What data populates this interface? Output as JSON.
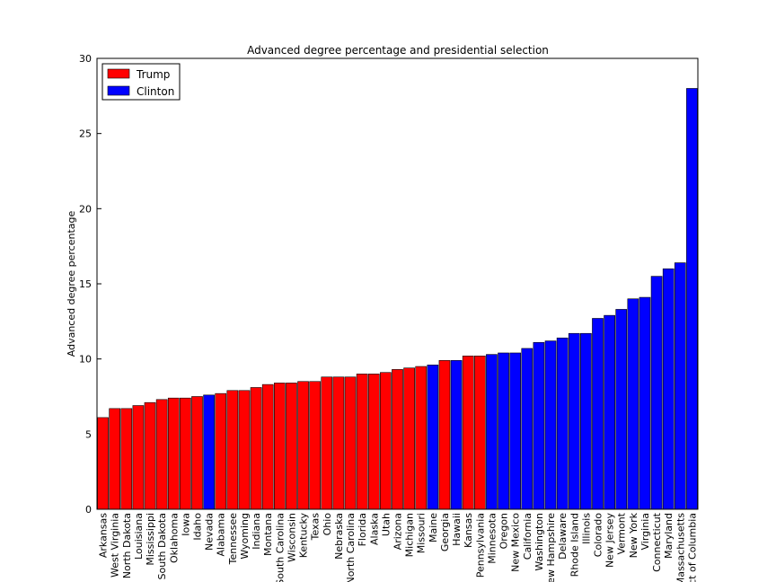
{
  "chart_data": {
    "type": "bar",
    "title": "Advanced degree percentage and presidential selection",
    "y_label": "Advanced degree percentage",
    "categories": [
      "Arkansas",
      "West Virginia",
      "North Dakota",
      "Louisiana",
      "Mississippi",
      "South Dakota",
      "Oklahoma",
      "Iowa",
      "Idaho",
      "Nevada",
      "Alabama",
      "Tennessee",
      "Wyoming",
      "Indiana",
      "Montana",
      "South Carolina",
      "Wisconsin",
      "Kentucky",
      "Texas",
      "Ohio",
      "Nebraska",
      "North Carolina",
      "Florida",
      "Alaska",
      "Utah",
      "Arizona",
      "Michigan",
      "Missouri",
      "Maine",
      "Georgia",
      "Hawaii",
      "Kansas",
      "Pennsylvania",
      "Minnesota",
      "Oregon",
      "New Mexico",
      "California",
      "Washington",
      "New Hampshire",
      "Delaware",
      "Rhode Island",
      "Illinois",
      "Colorado",
      "New Jersey",
      "Vermont",
      "New York",
      "Virginia",
      "Connecticut",
      "Maryland",
      "Massachusetts",
      "District of Columbia"
    ],
    "series": [
      {
        "name": "Trump",
        "color": "#ff0000",
        "values": [
          6.1,
          6.7,
          6.7,
          6.9,
          7.1,
          7.3,
          7.4,
          7.4,
          7.5,
          null,
          7.7,
          7.9,
          7.9,
          8.1,
          8.3,
          8.4,
          8.4,
          8.5,
          8.5,
          8.8,
          8.8,
          8.8,
          9.0,
          9.0,
          9.1,
          9.3,
          9.4,
          9.5,
          null,
          9.9,
          null,
          10.2,
          10.2,
          null,
          null,
          null,
          null,
          null,
          null,
          null,
          null,
          null,
          null,
          null,
          null,
          null,
          null,
          null,
          null,
          null,
          null
        ]
      },
      {
        "name": "Clinton",
        "color": "#0000ff",
        "values": [
          null,
          null,
          null,
          null,
          null,
          null,
          null,
          null,
          null,
          7.6,
          null,
          null,
          null,
          null,
          null,
          null,
          null,
          null,
          null,
          null,
          null,
          null,
          null,
          null,
          null,
          null,
          null,
          null,
          9.6,
          null,
          9.9,
          null,
          null,
          10.3,
          10.4,
          10.4,
          10.7,
          11.1,
          11.2,
          11.4,
          11.7,
          11.7,
          12.7,
          12.9,
          13.3,
          14.0,
          14.1,
          15.5,
          16.0,
          16.4,
          28.0
        ]
      }
    ],
    "ylim": [
      0,
      30
    ],
    "yticks": [
      0,
      5,
      10,
      15,
      20,
      25,
      30
    ],
    "legend": "upper left"
  }
}
